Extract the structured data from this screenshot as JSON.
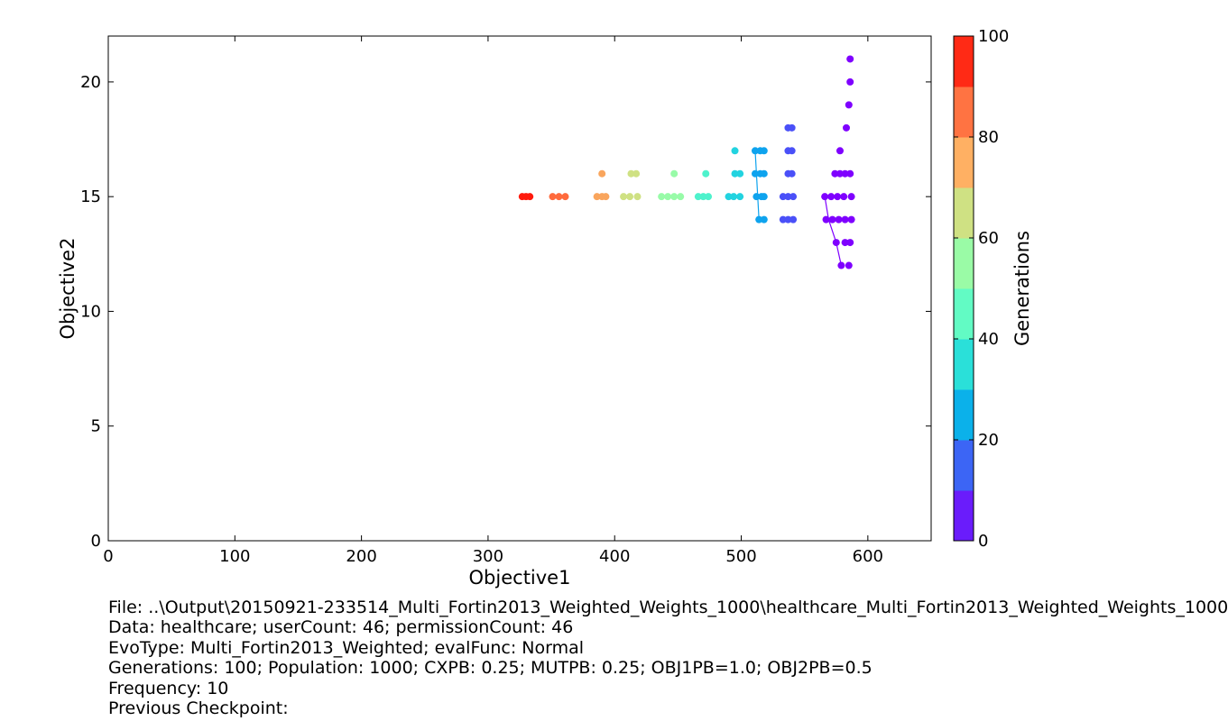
{
  "chart_data": {
    "type": "scatter",
    "title": "",
    "xlabel": "Objective1",
    "ylabel": "Objective2",
    "xlim": [
      0,
      650
    ],
    "ylim": [
      0,
      22
    ],
    "xticks": [
      "0",
      "100",
      "200",
      "300",
      "400",
      "500",
      "600"
    ],
    "yticks": [
      "0",
      "5",
      "10",
      "15",
      "20"
    ],
    "grid": false,
    "colorbar": {
      "label": "Generations",
      "range": [
        0,
        100
      ],
      "ticks": [
        "0",
        "20",
        "40",
        "60",
        "80",
        "100"
      ],
      "bands": [
        "#6a1cfb",
        "#3c65f5",
        "#0bb1ea",
        "#2ae0d9",
        "#62fbc4",
        "#9afba6",
        "#cfe183",
        "#ffb063",
        "#ff7342",
        "#ff2a15"
      ]
    },
    "series": [
      {
        "generation": 0,
        "color": "#7f00ff",
        "points": [
          [
            586,
            21
          ],
          [
            586,
            20
          ],
          [
            585,
            19
          ],
          [
            583,
            18
          ],
          [
            578,
            17
          ],
          [
            574,
            16
          ],
          [
            578,
            16
          ],
          [
            582,
            16
          ],
          [
            586,
            16
          ],
          [
            566,
            15
          ],
          [
            571,
            15
          ],
          [
            576,
            15
          ],
          [
            581,
            15
          ],
          [
            587,
            15
          ],
          [
            567,
            14
          ],
          [
            572,
            14
          ],
          [
            577,
            14
          ],
          [
            582,
            14
          ],
          [
            587,
            14
          ],
          [
            575,
            13
          ],
          [
            582,
            13
          ],
          [
            586,
            13
          ],
          [
            579,
            12
          ],
          [
            585,
            12
          ]
        ],
        "lines": [
          [
            [
              566,
              15
            ],
            [
              569,
              14
            ],
            [
              575,
              13
            ],
            [
              579,
              12
            ]
          ]
        ]
      },
      {
        "generation": 10,
        "color": "#4a50f8",
        "points": [
          [
            537,
            18
          ],
          [
            540,
            18
          ],
          [
            537,
            17
          ],
          [
            540,
            17
          ],
          [
            537,
            16
          ],
          [
            540,
            16
          ],
          [
            533,
            15
          ],
          [
            537,
            15
          ],
          [
            541,
            15
          ],
          [
            533,
            14
          ],
          [
            537,
            14
          ],
          [
            541,
            14
          ]
        ]
      },
      {
        "generation": 20,
        "color": "#0ea3ee",
        "points": [
          [
            511,
            17
          ],
          [
            515,
            17
          ],
          [
            518,
            17
          ],
          [
            511,
            16
          ],
          [
            515,
            16
          ],
          [
            518,
            16
          ],
          [
            512,
            15
          ],
          [
            516,
            15
          ],
          [
            518,
            15
          ],
          [
            514,
            14
          ],
          [
            518,
            14
          ]
        ],
        "lines": [
          [
            [
              511,
              17
            ],
            [
              513,
              15
            ],
            [
              514,
              14
            ]
          ]
        ]
      },
      {
        "generation": 30,
        "color": "#22d3e0",
        "points": [
          [
            495,
            17
          ],
          [
            495,
            16
          ],
          [
            499,
            16
          ],
          [
            490,
            15
          ],
          [
            494,
            15
          ],
          [
            499,
            15
          ]
        ]
      },
      {
        "generation": 40,
        "color": "#4ef2cc",
        "points": [
          [
            472,
            16
          ],
          [
            466,
            15
          ],
          [
            470,
            15
          ],
          [
            474,
            15
          ]
        ]
      },
      {
        "generation": 50,
        "color": "#98fba8",
        "points": [
          [
            447,
            16
          ],
          [
            437,
            15
          ],
          [
            442,
            15
          ],
          [
            447,
            15
          ],
          [
            452,
            15
          ]
        ]
      },
      {
        "generation": 60,
        "color": "#cfe183",
        "points": [
          [
            413,
            16
          ],
          [
            417,
            16
          ],
          [
            407,
            15
          ],
          [
            412,
            15
          ],
          [
            418,
            15
          ]
        ]
      },
      {
        "generation": 70,
        "color": "#f9a55d",
        "points": [
          [
            390,
            16
          ],
          [
            386,
            15
          ],
          [
            390,
            15
          ],
          [
            393,
            15
          ]
        ]
      },
      {
        "generation": 80,
        "color": "#ff6a3c",
        "points": [
          [
            351,
            15
          ],
          [
            356,
            15
          ],
          [
            361,
            15
          ]
        ]
      },
      {
        "generation": 90,
        "color": "#ff1a0d",
        "points": [
          [
            327,
            15
          ],
          [
            330,
            15
          ],
          [
            333,
            15
          ]
        ]
      }
    ]
  },
  "info": {
    "file": "File: ..\\Output\\20150921-233514_Multi_Fortin2013_Weighted_Weights_1000\\healthcare_Multi_Fortin2013_Weighted_Weights_1000",
    "data": "Data: healthcare; userCount: 46; permissionCount: 46",
    "evotype": "EvoType: Multi_Fortin2013_Weighted; evalFunc: Normal",
    "generations": "Generations: 100; Population: 1000; CXPB: 0.25; MUTPB: 0.25; OBJ1PB=1.0; OBJ2PB=0.5",
    "frequency": "Frequency: 10",
    "checkpoint": "Previous Checkpoint:"
  }
}
